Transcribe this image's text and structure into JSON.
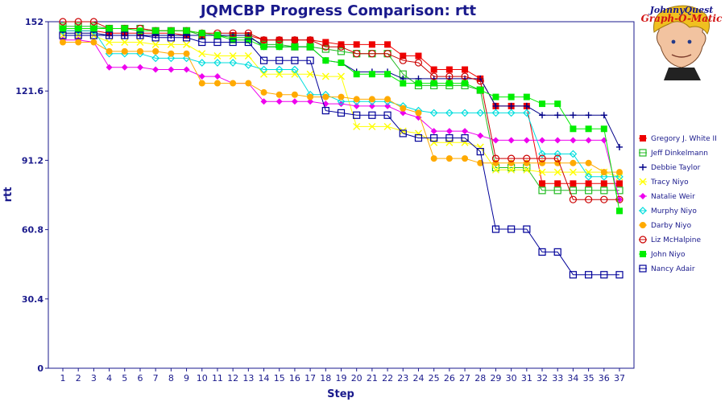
{
  "logo": {
    "line1": "JohnnyQuest",
    "line2": "Graph-O-Matic"
  },
  "chart_data": {
    "type": "line",
    "title": "JQMCBP Progress Comparison: rtt",
    "xlabel": "Step",
    "ylabel": "rtt",
    "ylim": [
      0,
      152
    ],
    "yticks": [
      "0",
      "30.4",
      "60.8",
      "91.2",
      "121.6",
      "152"
    ],
    "x": [
      1,
      2,
      3,
      4,
      5,
      6,
      7,
      8,
      9,
      10,
      11,
      12,
      13,
      14,
      15,
      16,
      17,
      18,
      19,
      20,
      21,
      22,
      23,
      24,
      25,
      26,
      27,
      28,
      29,
      30,
      31,
      32,
      33,
      34,
      35,
      36,
      37
    ],
    "grid": false,
    "legend_position": "right",
    "series": [
      {
        "name": "Gregory J. White II",
        "color": "#ee0000",
        "marker": "square-filled",
        "values": [
          148,
          148,
          148,
          147,
          147,
          147,
          147,
          147,
          146,
          146,
          146,
          146,
          146,
          144,
          144,
          144,
          144,
          143,
          142,
          142,
          142,
          142,
          137,
          137,
          131,
          131,
          131,
          127,
          115,
          115,
          115,
          81,
          81,
          81,
          81,
          81,
          81
        ]
      },
      {
        "name": "Jeff Dinkelmann",
        "color": "#22bb22",
        "marker": "square-open",
        "values": [
          150,
          150,
          150,
          149,
          149,
          149,
          148,
          148,
          148,
          146,
          146,
          145,
          145,
          142,
          142,
          141,
          141,
          140,
          139,
          138,
          138,
          138,
          129,
          124,
          124,
          124,
          124,
          122,
          88,
          88,
          88,
          78,
          78,
          78,
          78,
          78,
          78
        ]
      },
      {
        "name": "Debbie Taylor",
        "color": "#000088",
        "marker": "plus",
        "values": [
          147,
          147,
          147,
          146,
          146,
          146,
          146,
          146,
          146,
          146,
          146,
          146,
          146,
          141,
          141,
          141,
          141,
          135,
          134,
          130,
          130,
          130,
          127,
          127,
          127,
          127,
          127,
          127,
          115,
          115,
          115,
          111,
          111,
          111,
          111,
          111,
          97
        ]
      },
      {
        "name": "Tracy Niyo",
        "color": "#ffff00",
        "marker": "cross",
        "values": [
          146,
          146,
          146,
          143,
          143,
          143,
          142,
          142,
          142,
          138,
          137,
          137,
          137,
          129,
          129,
          129,
          129,
          128,
          128,
          106,
          106,
          106,
          104,
          103,
          99,
          99,
          99,
          97,
          87,
          87,
          87,
          86,
          86,
          86,
          86,
          86,
          84
        ]
      },
      {
        "name": "Natalie Weir",
        "color": "#ee00ee",
        "marker": "diamond-filled",
        "values": [
          144,
          144,
          143,
          132,
          132,
          132,
          131,
          131,
          131,
          128,
          128,
          125,
          125,
          117,
          117,
          117,
          117,
          116,
          116,
          115,
          115,
          115,
          112,
          110,
          104,
          104,
          104,
          102,
          100,
          100,
          100,
          100,
          100,
          100,
          100,
          100,
          74
        ]
      },
      {
        "name": "Murphy Niyo",
        "color": "#00dddd",
        "marker": "diamond-open",
        "values": [
          148,
          148,
          148,
          138,
          138,
          138,
          136,
          136,
          136,
          134,
          134,
          134,
          133,
          131,
          131,
          131,
          120,
          120,
          117,
          117,
          117,
          117,
          115,
          113,
          112,
          112,
          112,
          112,
          112,
          112,
          112,
          94,
          94,
          94,
          84,
          84,
          84
        ]
      },
      {
        "name": "Darby Niyo",
        "color": "#ffaa00",
        "marker": "circle-filled",
        "values": [
          143,
          143,
          143,
          139,
          139,
          139,
          139,
          138,
          138,
          125,
          125,
          125,
          125,
          121,
          120,
          120,
          119,
          119,
          119,
          118,
          118,
          118,
          114,
          112,
          92,
          92,
          92,
          90,
          90,
          90,
          90,
          90,
          90,
          90,
          90,
          86,
          86
        ]
      },
      {
        "name": "Liz McHalpine",
        "color": "#cc0000",
        "marker": "circle-open",
        "values": [
          152,
          152,
          152,
          149,
          149,
          149,
          148,
          148,
          148,
          147,
          147,
          147,
          147,
          144,
          144,
          144,
          144,
          141,
          141,
          138,
          138,
          138,
          135,
          134,
          128,
          128,
          128,
          126,
          92,
          92,
          92,
          92,
          92,
          74,
          74,
          74,
          74
        ]
      },
      {
        "name": "John Niyo",
        "color": "#00ee00",
        "marker": "square-filled",
        "values": [
          149,
          149,
          149,
          149,
          149,
          148,
          148,
          148,
          148,
          147,
          146,
          144,
          144,
          141,
          141,
          141,
          141,
          135,
          134,
          129,
          129,
          129,
          125,
          125,
          125,
          125,
          125,
          122,
          119,
          119,
          119,
          116,
          116,
          105,
          105,
          105,
          69
        ]
      },
      {
        "name": "Nancy Adair",
        "color": "#000099",
        "marker": "square-open",
        "values": [
          146,
          146,
          146,
          146,
          146,
          146,
          145,
          145,
          145,
          143,
          143,
          143,
          143,
          135,
          135,
          135,
          135,
          113,
          112,
          111,
          111,
          111,
          103,
          101,
          101,
          101,
          101,
          95,
          61,
          61,
          61,
          51,
          51,
          41,
          41,
          41,
          41
        ]
      }
    ]
  }
}
